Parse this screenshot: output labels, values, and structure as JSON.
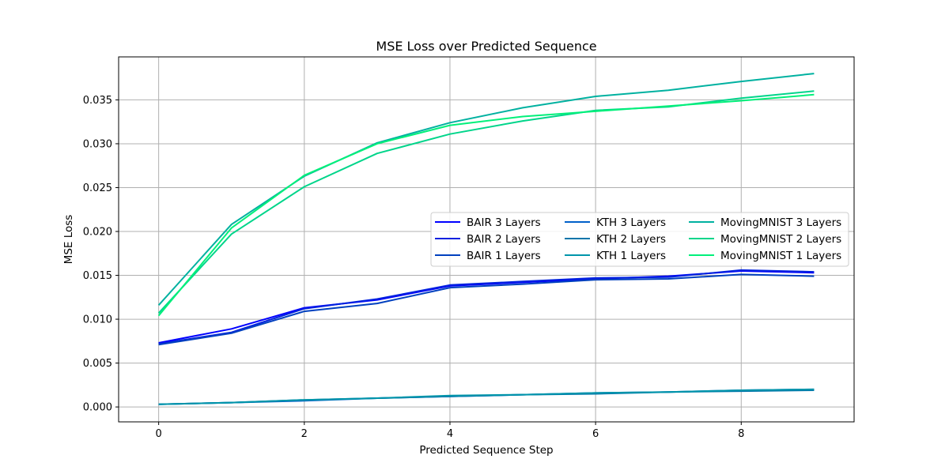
{
  "chart_data": {
    "type": "line",
    "title": "MSE Loss over Predicted Sequence",
    "xlabel": "Predicted Sequence Step",
    "ylabel": "MSE Loss",
    "xlim": [
      -0.55,
      9.55
    ],
    "ylim": [
      -0.0017,
      0.0399
    ],
    "xticks": [
      0,
      2,
      4,
      6,
      8
    ],
    "xtick_labels": [
      "0",
      "2",
      "4",
      "6",
      "8"
    ],
    "yticks": [
      0.0,
      0.005,
      0.01,
      0.015,
      0.02,
      0.025,
      0.03,
      0.035
    ],
    "ytick_labels": [
      "0.000",
      "0.005",
      "0.010",
      "0.015",
      "0.020",
      "0.025",
      "0.030",
      "0.035"
    ],
    "grid": true,
    "legend_position": "center-right",
    "legend_columns": 3,
    "x": [
      0,
      1,
      2,
      3,
      4,
      5,
      6,
      7,
      8,
      9
    ],
    "series": [
      {
        "name": "BAIR 3 Layers",
        "color": "#0000ff",
        "values": [
          0.0073,
          0.0089,
          0.0113,
          0.0122,
          0.0138,
          0.0142,
          0.0146,
          0.0149,
          0.0155,
          0.0153
        ]
      },
      {
        "name": "BAIR 2 Layers",
        "color": "#0020df",
        "values": [
          0.0072,
          0.0085,
          0.0112,
          0.0123,
          0.0139,
          0.0143,
          0.0147,
          0.0148,
          0.0156,
          0.0154
        ]
      },
      {
        "name": "BAIR 1 Layers",
        "color": "#0040bf",
        "values": [
          0.0071,
          0.0084,
          0.0109,
          0.0118,
          0.0136,
          0.014,
          0.0145,
          0.0146,
          0.0151,
          0.0149
        ]
      },
      {
        "name": "KTH 3 Layers",
        "color": "#0060ca",
        "values": [
          0.0003,
          0.0005,
          0.0007,
          0.001,
          0.0012,
          0.0014,
          0.0016,
          0.0017,
          0.0019,
          0.002
        ]
      },
      {
        "name": "KTH 2 Layers",
        "color": "#0075aa",
        "values": [
          0.0003,
          0.0005,
          0.0008,
          0.001,
          0.0012,
          0.0014,
          0.0015,
          0.0017,
          0.0018,
          0.0019
        ]
      },
      {
        "name": "KTH 1 Layers",
        "color": "#0095aa",
        "values": [
          0.0003,
          0.0005,
          0.0008,
          0.001,
          0.0013,
          0.0014,
          0.0016,
          0.0017,
          0.0019,
          0.002
        ]
      },
      {
        "name": "MovingMNIST 3 Layers",
        "color": "#00b1a0",
        "values": [
          0.0116,
          0.0208,
          0.0263,
          0.0301,
          0.0324,
          0.0341,
          0.0354,
          0.0361,
          0.0371,
          0.038
        ]
      },
      {
        "name": "MovingMNIST 2 Layers",
        "color": "#00d58a",
        "values": [
          0.0107,
          0.0197,
          0.0251,
          0.0289,
          0.0311,
          0.0326,
          0.0338,
          0.0342,
          0.0352,
          0.036
        ]
      },
      {
        "name": "MovingMNIST 1 Layers",
        "color": "#00f07a",
        "values": [
          0.0104,
          0.0204,
          0.0264,
          0.03,
          0.0321,
          0.0331,
          0.0337,
          0.0343,
          0.0349,
          0.0356
        ]
      }
    ]
  }
}
